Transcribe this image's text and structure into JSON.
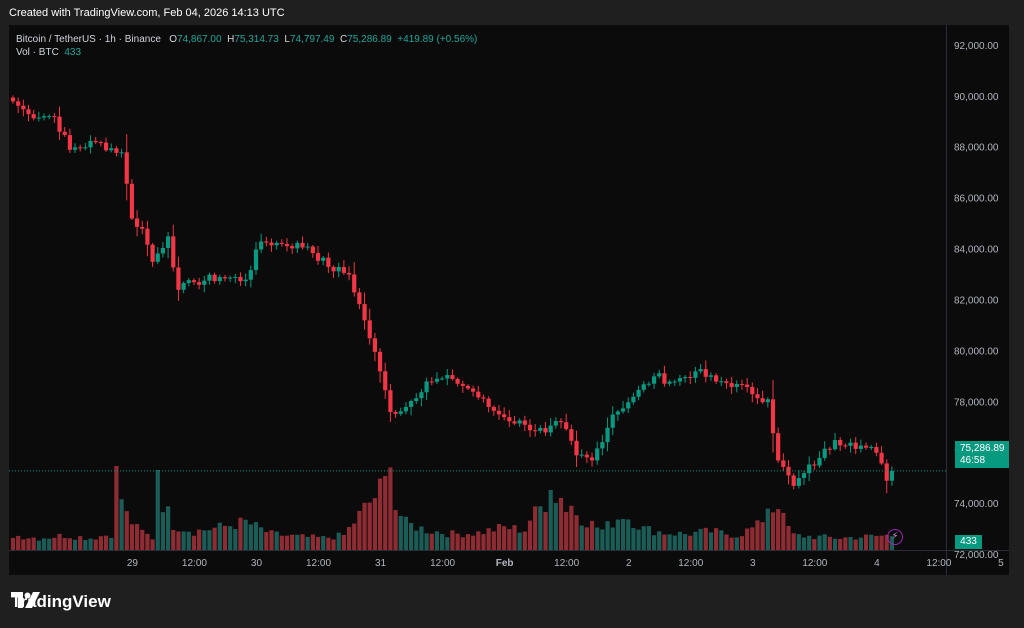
{
  "caption": "Created with TradingView.com, Feb 04, 2026 14:13 UTC",
  "legend": {
    "symbol": "Bitcoin / TetherUS · 1h · Binance",
    "open_label": "O",
    "open": "74,867.00",
    "high_label": "H",
    "high": "75,314.73",
    "low_label": "L",
    "low": "74,797.49",
    "close_label": "C",
    "close": "75,286.89",
    "change": "+419.89 (+0.56%)"
  },
  "volume_legend": {
    "label": "Vol · BTC",
    "value": "433"
  },
  "last_price": {
    "price": "75,286.89",
    "countdown": "46:58"
  },
  "volume_tag": "433",
  "brand": "TradingView",
  "colors": {
    "up": "#089981",
    "down": "#f23645",
    "vol_up": "#1b5c57",
    "vol_down": "#8e2c33",
    "background": "#0b0b0b"
  },
  "chart_data": {
    "type": "candlestick",
    "x_ticks": [
      "29",
      "12:00",
      "30",
      "12:00",
      "31",
      "12:00",
      "Feb",
      "12:00",
      "2",
      "12:00",
      "3",
      "12:00",
      "4",
      "12:00",
      "5"
    ],
    "y_ticks": [
      "92,000.00",
      "90,000.00",
      "88,000.00",
      "86,000.00",
      "84,000.00",
      "82,000.00",
      "80,000.00",
      "78,000.00",
      "76,000.00",
      "74,000.00",
      "72,000.00"
    ],
    "ylim": [
      71200,
      92800
    ],
    "last_close": 75286.89,
    "anchors": [
      [
        0,
        89800
      ],
      [
        3,
        89300
      ],
      [
        8,
        89200
      ],
      [
        11,
        87900
      ],
      [
        16,
        88200
      ],
      [
        21,
        87800
      ],
      [
        23,
        85200
      ],
      [
        25,
        84800
      ],
      [
        27,
        83500
      ],
      [
        30,
        84500
      ],
      [
        32,
        82400
      ],
      [
        35,
        82700
      ],
      [
        40,
        82900
      ],
      [
        45,
        82800
      ],
      [
        48,
        84300
      ],
      [
        52,
        84200
      ],
      [
        57,
        84100
      ],
      [
        61,
        83300
      ],
      [
        65,
        83000
      ],
      [
        68,
        81200
      ],
      [
        71,
        79200
      ],
      [
        73,
        77600
      ],
      [
        76,
        77800
      ],
      [
        80,
        78800
      ],
      [
        85,
        78900
      ],
      [
        89,
        78400
      ],
      [
        92,
        77800
      ],
      [
        95,
        77400
      ],
      [
        99,
        77100
      ],
      [
        103,
        76800
      ],
      [
        106,
        77200
      ],
      [
        109,
        75900
      ],
      [
        112,
        75700
      ],
      [
        116,
        77500
      ],
      [
        120,
        78200
      ],
      [
        124,
        79000
      ],
      [
        128,
        78800
      ],
      [
        132,
        79200
      ],
      [
        136,
        78800
      ],
      [
        140,
        78700
      ],
      [
        143,
        78300
      ],
      [
        146,
        78100
      ],
      [
        148,
        75700
      ],
      [
        151,
        74700
      ],
      [
        153,
        75200
      ],
      [
        156,
        75800
      ],
      [
        159,
        76500
      ],
      [
        162,
        76400
      ],
      [
        165,
        76200
      ],
      [
        167,
        76000
      ],
      [
        169,
        74900
      ],
      [
        170,
        75286.89
      ]
    ],
    "volume_anchors": [
      [
        0,
        1100
      ],
      [
        5,
        900
      ],
      [
        10,
        1100
      ],
      [
        15,
        900
      ],
      [
        19,
        1200
      ],
      [
        20,
        6100
      ],
      [
        21,
        3900
      ],
      [
        22,
        2600
      ],
      [
        24,
        1600
      ],
      [
        27,
        900
      ],
      [
        28,
        5800
      ],
      [
        29,
        3600
      ],
      [
        31,
        1900
      ],
      [
        35,
        1400
      ],
      [
        40,
        1700
      ],
      [
        45,
        2100
      ],
      [
        50,
        1200
      ],
      [
        55,
        1000
      ],
      [
        60,
        900
      ],
      [
        64,
        1100
      ],
      [
        68,
        3100
      ],
      [
        70,
        4000
      ],
      [
        72,
        5000
      ],
      [
        73,
        6000
      ],
      [
        74,
        3200
      ],
      [
        76,
        2000
      ],
      [
        80,
        1500
      ],
      [
        85,
        1200
      ],
      [
        90,
        1300
      ],
      [
        95,
        1700
      ],
      [
        99,
        1500
      ],
      [
        100,
        2300
      ],
      [
        103,
        3600
      ],
      [
        104,
        4400
      ],
      [
        106,
        2700
      ],
      [
        108,
        3300
      ],
      [
        110,
        2400
      ],
      [
        114,
        1500
      ],
      [
        118,
        2700
      ],
      [
        122,
        1600
      ],
      [
        126,
        1300
      ],
      [
        130,
        1200
      ],
      [
        135,
        1400
      ],
      [
        140,
        1100
      ],
      [
        144,
        1800
      ],
      [
        146,
        2900
      ],
      [
        147,
        3100
      ],
      [
        148,
        3700
      ],
      [
        149,
        2300
      ],
      [
        151,
        1100
      ],
      [
        155,
        1000
      ],
      [
        160,
        900
      ],
      [
        165,
        1000
      ],
      [
        170,
        1100
      ]
    ],
    "volume_spikes": [
      [
        20,
        6300
      ],
      [
        28,
        6000
      ],
      [
        73,
        6200
      ],
      [
        104,
        4500
      ],
      [
        106,
        3900
      ],
      [
        146,
        3100
      ]
    ],
    "volume_axis_max": 9000,
    "grid": false,
    "legend_position": "top-left"
  }
}
